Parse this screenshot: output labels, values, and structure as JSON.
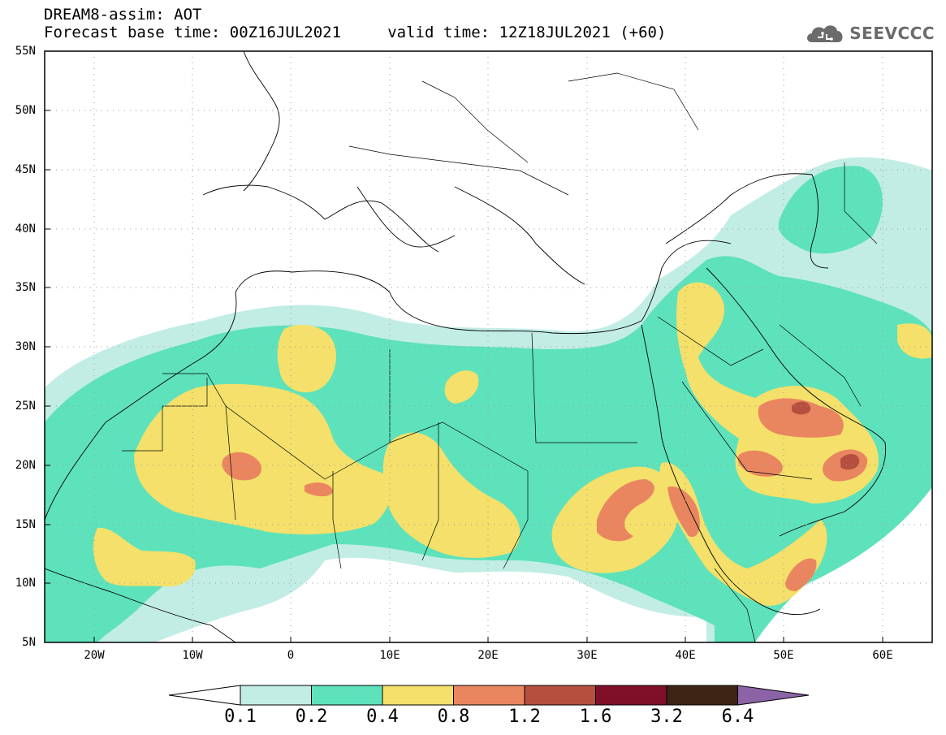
{
  "header": {
    "line1": "DREAM8-assim: AOT",
    "line2": "Forecast base time: 00Z16JUL2021     valid time: 12Z18JUL2021 (+60)"
  },
  "logo": {
    "text": "SEEVCCC",
    "icon": "cloud-icon"
  },
  "map": {
    "lon_range": [
      -25,
      65
    ],
    "lat_range": [
      5,
      55
    ],
    "lat_labels": [
      "55N",
      "50N",
      "45N",
      "40N",
      "35N",
      "30N",
      "25N",
      "20N",
      "15N",
      "10N",
      "5N"
    ],
    "lon_labels": [
      "20W",
      "10W",
      "0",
      "10E",
      "20E",
      "30E",
      "40E",
      "50E",
      "60E"
    ],
    "grid": "dotted"
  },
  "colorbar": {
    "labels": [
      "0.1",
      "0.2",
      "0.4",
      "0.8",
      "1.2",
      "1.6",
      "3.2",
      "6.4"
    ],
    "colors": [
      "#ffffff",
      "#c2ede5",
      "#5ee2bb",
      "#f4e06a",
      "#e98660",
      "#b6503e",
      "#80102a",
      "#3d2414",
      "#8b63a6"
    ]
  },
  "colors": {
    "c1": "#c2ede5",
    "c2": "#5ee2bb",
    "c3": "#f4e06a",
    "c4": "#e98660",
    "c5": "#b6503e",
    "c6": "#80102a"
  }
}
